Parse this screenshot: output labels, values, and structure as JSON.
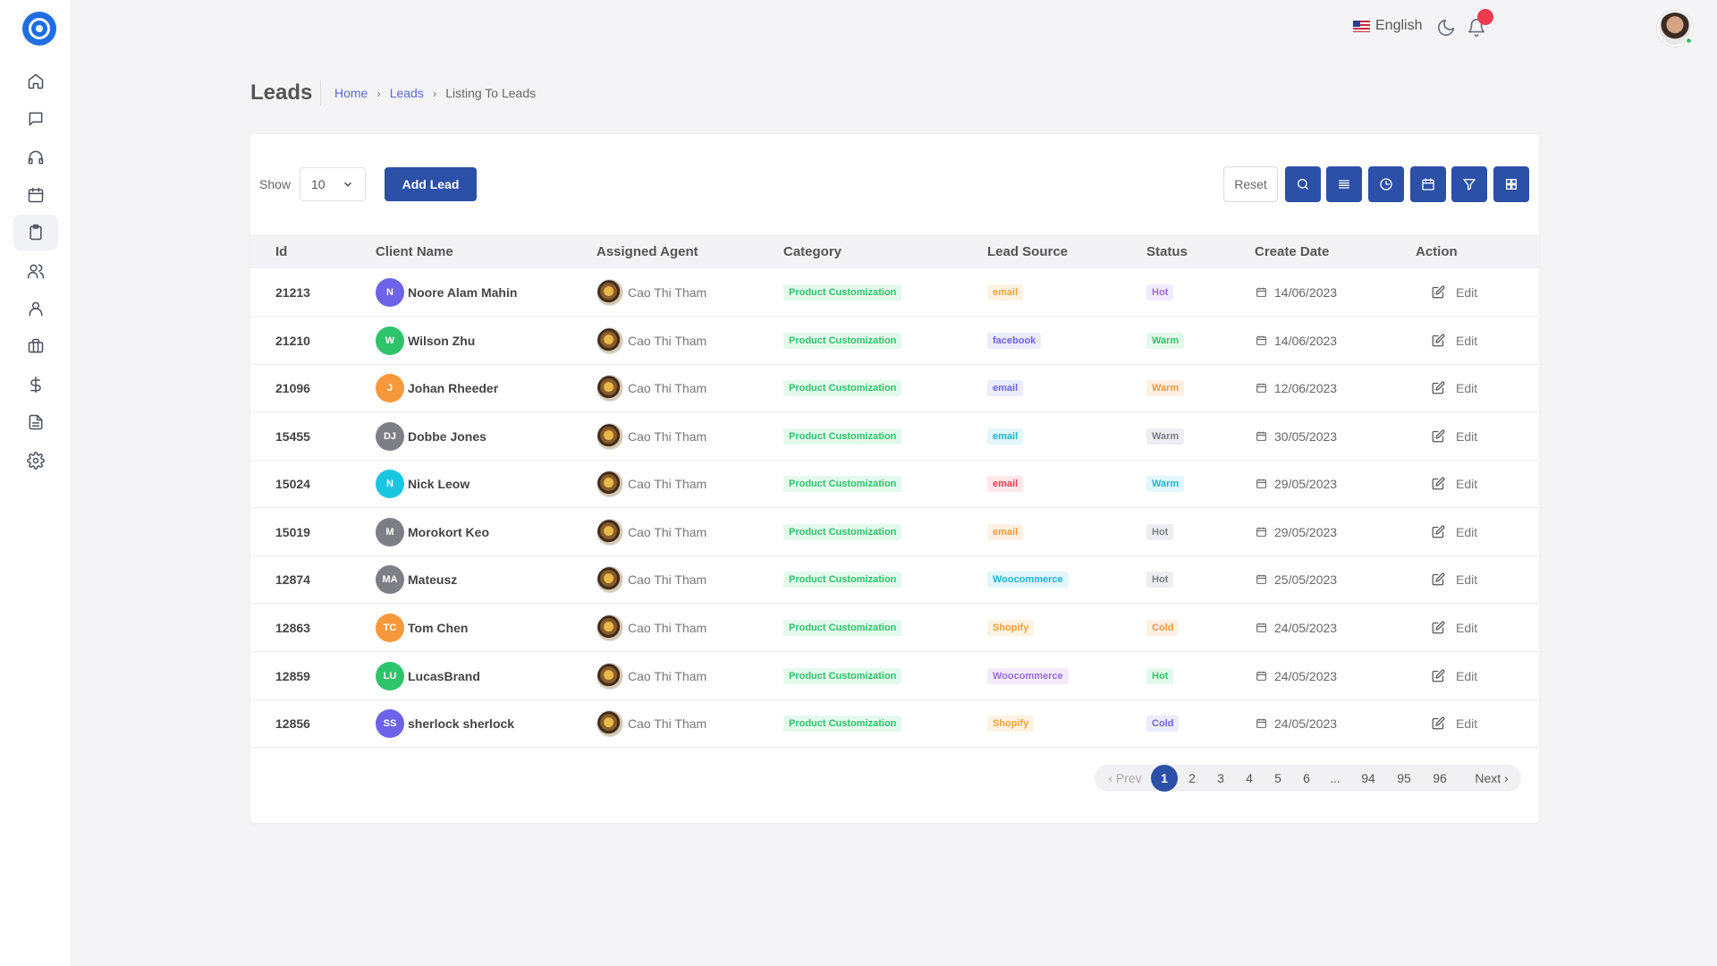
{
  "topbar": {
    "language": "English"
  },
  "sidebar": {
    "items": [
      {
        "name": "home-icon"
      },
      {
        "name": "chat-icon"
      },
      {
        "name": "headphones-icon"
      },
      {
        "name": "calendar-icon"
      },
      {
        "name": "clipboard-icon",
        "active": true
      },
      {
        "name": "users-icon"
      },
      {
        "name": "user-icon"
      },
      {
        "name": "briefcase-icon"
      },
      {
        "name": "dollar-icon"
      },
      {
        "name": "file-text-icon"
      },
      {
        "name": "settings-icon"
      }
    ]
  },
  "header": {
    "title": "Leads",
    "breadcrumb": [
      "Home",
      "Leads",
      "Listing To Leads"
    ]
  },
  "toolbar": {
    "show_label": "Show",
    "show_value": "10",
    "add_label": "Add Lead",
    "reset_label": "Reset",
    "tools": [
      "search-icon",
      "list-icon",
      "clock-icon",
      "calendar-icon",
      "filter-icon",
      "grid-icon"
    ]
  },
  "table": {
    "columns": [
      "Id",
      "Client Name",
      "Assigned Agent",
      "Category",
      "Lead Source",
      "Status",
      "Create Date",
      "Action"
    ],
    "rows": [
      {
        "id": "21213",
        "initials": "N",
        "avatar_color": "#6d63e8",
        "client": "Noore Alam Mahin",
        "agent": "Cao Thi Tham",
        "category": "Product Customization",
        "source": "email",
        "source_color": "#f0a23c",
        "source_bg": "#fdf3e3",
        "status": "Hot",
        "status_color": "#9b6cd8",
        "status_bg": "#f2ebfb",
        "date": "14/06/2023",
        "action": "Edit"
      },
      {
        "id": "21210",
        "initials": "W",
        "avatar_color": "#2ec46b",
        "client": "Wilson Zhu",
        "agent": "Cao Thi Tham",
        "category": "Product Customization",
        "source": "facebook",
        "source_color": "#6d63e8",
        "source_bg": "#ecebfc",
        "status": "Warm",
        "status_color": "#2ec46b",
        "status_bg": "#e5f8ed",
        "date": "14/06/2023",
        "action": "Edit"
      },
      {
        "id": "21096",
        "initials": "J",
        "avatar_color": "#f7983a",
        "client": "Johan Rheeder",
        "agent": "Cao Thi Tham",
        "category": "Product Customization",
        "source": "email",
        "source_color": "#6d63e8",
        "source_bg": "#ecebfc",
        "status": "Warm",
        "status_color": "#f7983a",
        "status_bg": "#fef1e4",
        "date": "12/06/2023",
        "action": "Edit"
      },
      {
        "id": "15455",
        "initials": "DJ",
        "avatar_color": "#7d7f86",
        "client": "Dobbe Jones",
        "agent": "Cao Thi Tham",
        "category": "Product Customization",
        "source": "email",
        "source_color": "#19b6d8",
        "source_bg": "#e2f6fb",
        "status": "Warm",
        "status_color": "#7d7f86",
        "status_bg": "#eeeef0",
        "date": "30/05/2023",
        "action": "Edit"
      },
      {
        "id": "15024",
        "initials": "N",
        "avatar_color": "#19c6e0",
        "client": "Nick Leow",
        "agent": "Cao Thi Tham",
        "category": "Product Customization",
        "source": "email",
        "source_color": "#ee3b4f",
        "source_bg": "#fde7e9",
        "status": "Warm",
        "status_color": "#19b6d8",
        "status_bg": "#e2f6fb",
        "date": "29/05/2023",
        "action": "Edit"
      },
      {
        "id": "15019",
        "initials": "M",
        "avatar_color": "#7d7f86",
        "client": "Morokort Keo",
        "agent": "Cao Thi Tham",
        "category": "Product Customization",
        "source": "email",
        "source_color": "#f7983a",
        "source_bg": "#fef1e4",
        "status": "Hot",
        "status_color": "#7d7f86",
        "status_bg": "#eeeef0",
        "date": "29/05/2023",
        "action": "Edit"
      },
      {
        "id": "12874",
        "initials": "MA",
        "avatar_color": "#7d7f86",
        "client": "Mateusz",
        "agent": "Cao Thi Tham",
        "category": "Product Customization",
        "source": "Woocommerce",
        "source_color": "#19b6d8",
        "source_bg": "#e2f6fb",
        "status": "Hot",
        "status_color": "#7d7f86",
        "status_bg": "#eeeef0",
        "date": "25/05/2023",
        "action": "Edit"
      },
      {
        "id": "12863",
        "initials": "TC",
        "avatar_color": "#f7983a",
        "client": "Tom Chen",
        "agent": "Cao Thi Tham",
        "category": "Product Customization",
        "source": "Shopify",
        "source_color": "#f0a23c",
        "source_bg": "#fdf3e3",
        "status": "Cold",
        "status_color": "#f7983a",
        "status_bg": "#fef1e4",
        "date": "24/05/2023",
        "action": "Edit"
      },
      {
        "id": "12859",
        "initials": "LU",
        "avatar_color": "#2ec46b",
        "client": "LucasBrand",
        "agent": "Cao Thi Tham",
        "category": "Product Customization",
        "source": "Woocommerce",
        "source_color": "#9b6cd8",
        "source_bg": "#f2ebfb",
        "status": "Hot",
        "status_color": "#2ec46b",
        "status_bg": "#e5f8ed",
        "date": "24/05/2023",
        "action": "Edit"
      },
      {
        "id": "12856",
        "initials": "SS",
        "avatar_color": "#6d63e8",
        "client": "sherlock sherlock",
        "agent": "Cao Thi Tham",
        "category": "Product Customization",
        "source": "Shopify",
        "source_color": "#f0a23c",
        "source_bg": "#fdf3e3",
        "status": "Cold",
        "status_color": "#6d63e8",
        "status_bg": "#ecebfc",
        "date": "24/05/2023",
        "action": "Edit"
      }
    ]
  },
  "pagination": {
    "prev": "‹ Prev",
    "next": "Next ›",
    "pages": [
      "1",
      "2",
      "3",
      "4",
      "5",
      "6",
      "...",
      "94",
      "95",
      "96"
    ],
    "current": "1"
  },
  "colors": {
    "primary": "#2c4fa8",
    "link": "#5a68d8",
    "category_text": "#2ec46b",
    "category_bg": "#e5f8ed"
  }
}
